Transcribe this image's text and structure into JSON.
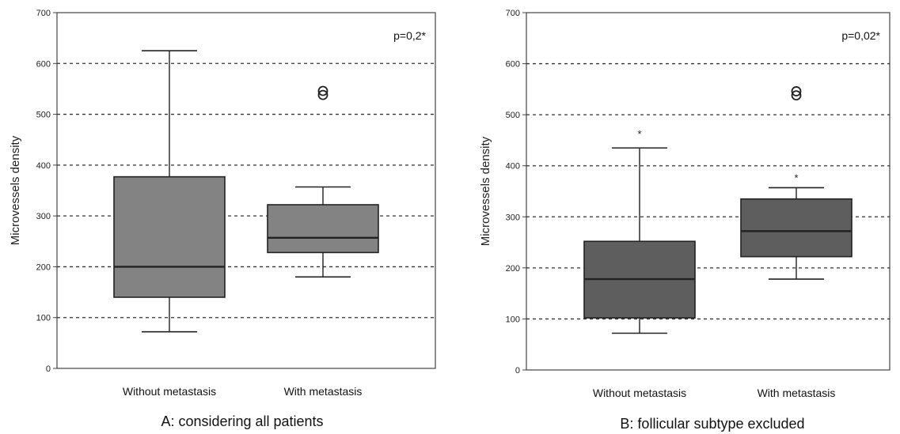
{
  "chart_data": [
    {
      "type": "boxplot",
      "ylabel": "Microvessels density",
      "ylim": [
        0,
        700
      ],
      "yticks": [
        0,
        100,
        200,
        300,
        400,
        500,
        600,
        700
      ],
      "grid": "horizontal dotted",
      "annotation": "p=0,2*",
      "caption": "A: considering all patients",
      "box_color": "#838383",
      "categories": [
        "Without metastasis",
        "With metastasis"
      ],
      "boxes": [
        {
          "category": "Without metastasis",
          "min": 72,
          "q1": 140,
          "median": 200,
          "q3": 377,
          "max": 625,
          "outliers": [],
          "extremes": []
        },
        {
          "category": "With metastasis",
          "min": 180,
          "q1": 228,
          "median": 257,
          "q3": 322,
          "max": 357,
          "outliers": [
            538,
            546
          ],
          "extremes": []
        }
      ]
    },
    {
      "type": "boxplot",
      "ylabel": "Microvessels density",
      "ylim": [
        0,
        700
      ],
      "yticks": [
        0,
        100,
        200,
        300,
        400,
        500,
        600,
        700
      ],
      "grid": "horizontal dotted",
      "annotation": "p=0,02*",
      "caption": "B:  follicular subtype excluded",
      "box_color": "#5e5e5e",
      "categories": [
        "Without metastasis",
        "With metastasis"
      ],
      "boxes": [
        {
          "category": "Without metastasis",
          "min": 72,
          "q1": 102,
          "median": 178,
          "q3": 252,
          "max": 435,
          "outliers": [],
          "extremes": [
            463
          ]
        },
        {
          "category": "With metastasis",
          "min": 178,
          "q1": 222,
          "median": 272,
          "q3": 335,
          "max": 357,
          "outliers": [
            538,
            546
          ],
          "extremes": [
            377
          ]
        }
      ]
    }
  ]
}
